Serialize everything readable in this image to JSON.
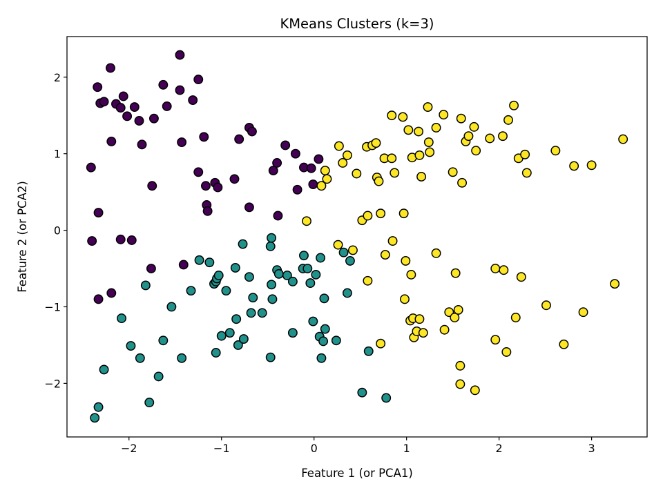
{
  "chart_data": {
    "type": "scatter",
    "title": "KMeans Clusters (k=3)",
    "xlabel": "Feature 1 (or PCA1)",
    "ylabel": "Feature 2 (or PCA2)",
    "xlim": [
      -2.67,
      3.6
    ],
    "ylim": [
      -2.7,
      2.53
    ],
    "xticks": [
      -2,
      -1,
      0,
      1,
      2,
      3
    ],
    "xtick_labels": [
      "−2",
      "−1",
      "0",
      "1",
      "2",
      "3"
    ],
    "yticks": [
      -2,
      -1,
      0,
      1,
      2
    ],
    "ytick_labels": [
      "−2",
      "−1",
      "0",
      "1",
      "2"
    ],
    "grid": false,
    "legend": "none",
    "marker_edge_color": "#000000",
    "series": [
      {
        "color": "#440154",
        "points": [
          [
            -2.41,
            0.82
          ],
          [
            -2.4,
            -0.14
          ],
          [
            -2.34,
            1.87
          ],
          [
            -2.33,
            0.23
          ],
          [
            -2.33,
            -0.9
          ],
          [
            -2.31,
            1.66
          ],
          [
            -2.27,
            1.68
          ],
          [
            -2.2,
            2.12
          ],
          [
            -2.19,
            1.16
          ],
          [
            -2.19,
            -0.82
          ],
          [
            -2.14,
            1.65
          ],
          [
            -2.09,
            1.6
          ],
          [
            -2.09,
            -0.12
          ],
          [
            -2.06,
            1.75
          ],
          [
            -2.02,
            1.49
          ],
          [
            -1.97,
            -0.13
          ],
          [
            -1.94,
            1.61
          ],
          [
            -1.89,
            1.43
          ],
          [
            -1.86,
            1.12
          ],
          [
            -1.75,
            0.58
          ],
          [
            -1.76,
            -0.5
          ],
          [
            -1.73,
            1.46
          ],
          [
            -1.63,
            1.9
          ],
          [
            -1.59,
            1.62
          ],
          [
            -1.45,
            2.29
          ],
          [
            -1.45,
            1.83
          ],
          [
            -1.43,
            1.15
          ],
          [
            -1.41,
            -0.45
          ],
          [
            -1.31,
            1.7
          ],
          [
            -1.25,
            1.97
          ],
          [
            -1.25,
            0.76
          ],
          [
            -1.19,
            1.22
          ],
          [
            -1.17,
            0.58
          ],
          [
            -1.16,
            0.33
          ],
          [
            -1.15,
            0.25
          ],
          [
            -1.07,
            0.62
          ],
          [
            -1.04,
            0.56
          ],
          [
            -0.86,
            0.67
          ],
          [
            -0.81,
            1.19
          ],
          [
            -0.7,
            1.34
          ],
          [
            -0.7,
            0.3
          ],
          [
            -0.67,
            1.29
          ],
          [
            -0.44,
            0.78
          ],
          [
            -0.4,
            0.88
          ],
          [
            -0.39,
            0.19
          ],
          [
            -0.31,
            1.11
          ],
          [
            -0.2,
            1.0
          ],
          [
            -0.18,
            0.53
          ],
          [
            -0.11,
            0.82
          ],
          [
            -0.03,
            0.81
          ],
          [
            -0.01,
            0.6
          ],
          [
            0.05,
            0.93
          ]
        ]
      },
      {
        "color": "#21918c",
        "points": [
          [
            -2.37,
            -2.45
          ],
          [
            -2.33,
            -2.31
          ],
          [
            -2.27,
            -1.82
          ],
          [
            -2.08,
            -1.15
          ],
          [
            -1.98,
            -1.51
          ],
          [
            -1.88,
            -1.67
          ],
          [
            -1.82,
            -0.72
          ],
          [
            -1.78,
            -2.25
          ],
          [
            -1.68,
            -1.91
          ],
          [
            -1.63,
            -1.44
          ],
          [
            -1.54,
            -1.0
          ],
          [
            -1.43,
            -1.67
          ],
          [
            -1.33,
            -0.79
          ],
          [
            -1.24,
            -0.39
          ],
          [
            -1.13,
            -0.42
          ],
          [
            -1.08,
            -0.7
          ],
          [
            -1.06,
            -0.67
          ],
          [
            -1.05,
            -0.63
          ],
          [
            -1.03,
            -0.59
          ],
          [
            -1.06,
            -1.6
          ],
          [
            -1.0,
            -1.38
          ],
          [
            -0.95,
            -0.79
          ],
          [
            -0.91,
            -1.34
          ],
          [
            -0.85,
            -0.49
          ],
          [
            -0.84,
            -1.16
          ],
          [
            -0.82,
            -1.5
          ],
          [
            -0.77,
            -0.18
          ],
          [
            -0.76,
            -1.42
          ],
          [
            -0.7,
            -0.61
          ],
          [
            -0.68,
            -1.08
          ],
          [
            -0.66,
            -0.88
          ],
          [
            -0.56,
            -1.08
          ],
          [
            -0.47,
            -0.21
          ],
          [
            -0.46,
            -0.1
          ],
          [
            -0.46,
            -0.71
          ],
          [
            -0.47,
            -1.66
          ],
          [
            -0.45,
            -0.9
          ],
          [
            -0.4,
            -0.52
          ],
          [
            -0.38,
            -0.57
          ],
          [
            -0.29,
            -0.59
          ],
          [
            -0.23,
            -0.67
          ],
          [
            -0.23,
            -1.34
          ],
          [
            -0.12,
            -0.5
          ],
          [
            -0.11,
            -0.33
          ],
          [
            -0.07,
            -0.5
          ],
          [
            -0.04,
            -0.69
          ],
          [
            -0.01,
            -1.19
          ],
          [
            0.02,
            -0.58
          ],
          [
            0.07,
            -0.36
          ],
          [
            0.06,
            -1.39
          ],
          [
            0.08,
            -1.67
          ],
          [
            0.1,
            -1.45
          ],
          [
            0.11,
            -0.89
          ],
          [
            0.12,
            -1.29
          ],
          [
            0.24,
            -1.44
          ],
          [
            0.32,
            -0.29
          ],
          [
            0.36,
            -0.82
          ],
          [
            0.39,
            -0.4
          ],
          [
            0.52,
            -2.12
          ],
          [
            0.59,
            -1.58
          ],
          [
            0.78,
            -2.19
          ]
        ]
      },
      {
        "color": "#fde725",
        "points": [
          [
            -0.08,
            0.12
          ],
          [
            0.08,
            0.58
          ],
          [
            0.12,
            0.78
          ],
          [
            0.14,
            0.67
          ],
          [
            0.26,
            -0.19
          ],
          [
            0.27,
            1.1
          ],
          [
            0.31,
            0.88
          ],
          [
            0.36,
            0.98
          ],
          [
            0.42,
            -0.26
          ],
          [
            0.46,
            0.74
          ],
          [
            0.52,
            0.13
          ],
          [
            0.57,
            1.09
          ],
          [
            0.58,
            0.19
          ],
          [
            0.58,
            -0.66
          ],
          [
            0.63,
            1.11
          ],
          [
            0.67,
            1.14
          ],
          [
            0.68,
            0.69
          ],
          [
            0.7,
            0.64
          ],
          [
            0.72,
            0.22
          ],
          [
            0.72,
            -1.48
          ],
          [
            0.76,
            0.94
          ],
          [
            0.77,
            -0.32
          ],
          [
            0.84,
            1.5
          ],
          [
            0.84,
            0.94
          ],
          [
            0.85,
            -0.14
          ],
          [
            0.87,
            0.75
          ],
          [
            0.96,
            1.48
          ],
          [
            0.97,
            0.22
          ],
          [
            0.98,
            -0.9
          ],
          [
            0.99,
            -0.4
          ],
          [
            1.02,
            1.31
          ],
          [
            1.05,
            -0.58
          ],
          [
            1.04,
            -1.18
          ],
          [
            1.06,
            0.95
          ],
          [
            1.07,
            -1.15
          ],
          [
            1.08,
            -1.4
          ],
          [
            1.11,
            -1.32
          ],
          [
            1.13,
            1.29
          ],
          [
            1.14,
            0.98
          ],
          [
            1.14,
            -1.16
          ],
          [
            1.16,
            0.7
          ],
          [
            1.18,
            -1.34
          ],
          [
            1.23,
            1.61
          ],
          [
            1.24,
            1.15
          ],
          [
            1.25,
            1.02
          ],
          [
            1.32,
            -0.3
          ],
          [
            1.32,
            1.34
          ],
          [
            1.4,
            1.51
          ],
          [
            1.41,
            -1.3
          ],
          [
            1.46,
            -1.07
          ],
          [
            1.5,
            0.76
          ],
          [
            1.52,
            -1.14
          ],
          [
            1.53,
            -0.56
          ],
          [
            1.56,
            -1.04
          ],
          [
            1.58,
            -1.77
          ],
          [
            1.58,
            -2.01
          ],
          [
            1.59,
            1.46
          ],
          [
            1.6,
            0.62
          ],
          [
            1.64,
            1.16
          ],
          [
            1.67,
            1.23
          ],
          [
            1.73,
            1.35
          ],
          [
            1.74,
            -2.09
          ],
          [
            1.75,
            1.04
          ],
          [
            1.9,
            1.2
          ],
          [
            1.96,
            -0.5
          ],
          [
            1.96,
            -1.43
          ],
          [
            2.04,
            1.23
          ],
          [
            2.05,
            -0.52
          ],
          [
            2.08,
            -1.59
          ],
          [
            2.1,
            1.44
          ],
          [
            2.16,
            1.63
          ],
          [
            2.18,
            -1.14
          ],
          [
            2.21,
            0.94
          ],
          [
            2.24,
            -0.61
          ],
          [
            2.28,
            0.99
          ],
          [
            2.3,
            0.75
          ],
          [
            2.51,
            -0.98
          ],
          [
            2.61,
            1.04
          ],
          [
            2.7,
            -1.49
          ],
          [
            2.81,
            0.84
          ],
          [
            2.91,
            -1.07
          ],
          [
            3.0,
            0.85
          ],
          [
            3.25,
            -0.7
          ],
          [
            3.34,
            1.19
          ]
        ]
      }
    ]
  }
}
